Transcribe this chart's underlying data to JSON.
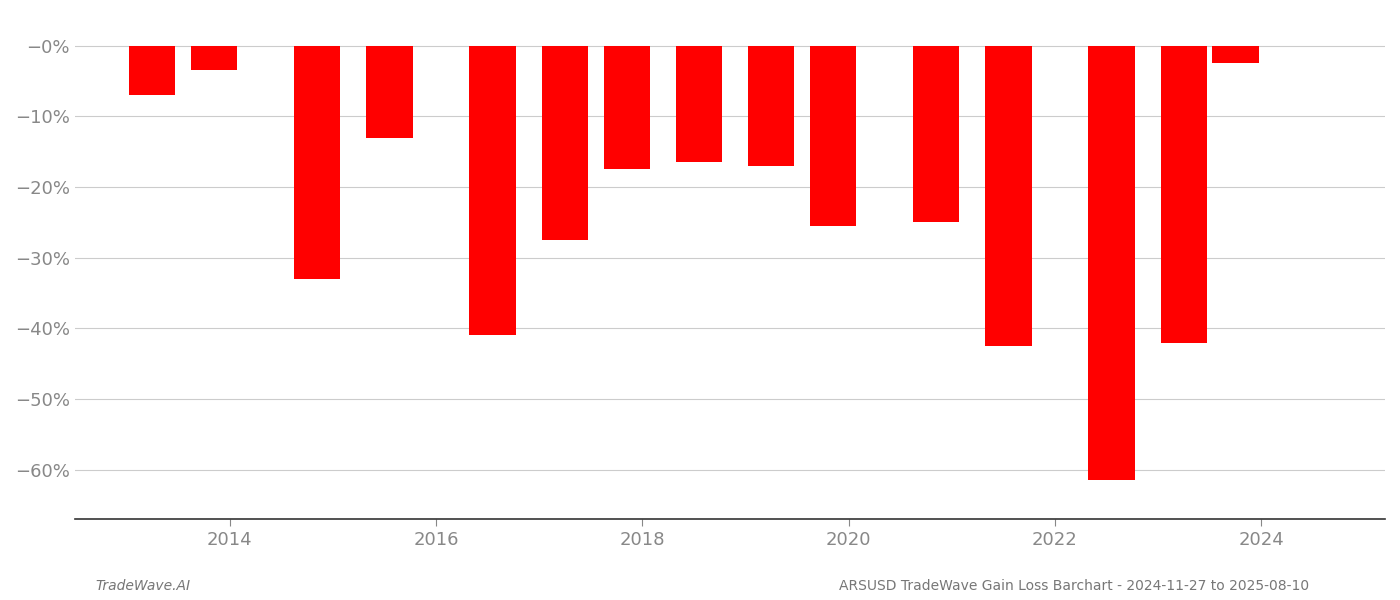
{
  "bars": [
    {
      "x": 2013.25,
      "value": -7.0
    },
    {
      "x": 2013.85,
      "value": -3.5
    },
    {
      "x": 2014.85,
      "value": -33.0
    },
    {
      "x": 2015.55,
      "value": -13.0
    },
    {
      "x": 2016.55,
      "value": -41.0
    },
    {
      "x": 2017.25,
      "value": -27.5
    },
    {
      "x": 2017.85,
      "value": -17.5
    },
    {
      "x": 2018.55,
      "value": -16.5
    },
    {
      "x": 2019.25,
      "value": -17.0
    },
    {
      "x": 2019.85,
      "value": -25.5
    },
    {
      "x": 2020.85,
      "value": -25.0
    },
    {
      "x": 2021.55,
      "value": -42.5
    },
    {
      "x": 2022.55,
      "value": -61.5
    },
    {
      "x": 2023.25,
      "value": -42.0
    },
    {
      "x": 2023.75,
      "value": -2.5
    }
  ],
  "bar_color": "#ff0000",
  "bar_width": 0.45,
  "xlim": [
    2012.5,
    2025.2
  ],
  "ylim": [
    -67,
    3.5
  ],
  "yticks": [
    0,
    -10,
    -20,
    -30,
    -40,
    -50,
    -60
  ],
  "yticklabels": [
    "−0%",
    "−10%",
    "−20%",
    "−30%",
    "−40%",
    "−50%",
    "−60%"
  ],
  "xticks": [
    2014,
    2016,
    2018,
    2020,
    2022,
    2024
  ],
  "xticklabels": [
    "2014",
    "2016",
    "2018",
    "2020",
    "2022",
    "2024"
  ],
  "grid_color": "#cccccc",
  "tick_color": "#888888",
  "footer_left": "TradeWave.AI",
  "footer_right": "ARSUSD TradeWave Gain Loss Barchart - 2024-11-27 to 2025-08-10",
  "background_color": "#ffffff",
  "tick_fontsize": 13,
  "footer_fontsize": 10
}
